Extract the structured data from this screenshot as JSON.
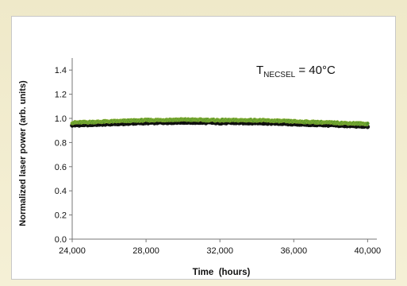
{
  "chart_data": {
    "type": "scatter",
    "xlabel": "Time  (hours)",
    "ylabel": "Normalized laser power (arb. units)",
    "annotation": {
      "main": "T",
      "subscript": "NECSEL",
      "rest": " = 40°C"
    },
    "xlim": [
      24000,
      40500
    ],
    "ylim": [
      0.0,
      1.5
    ],
    "xticks": [
      24000,
      28000,
      32000,
      36000,
      40000
    ],
    "xtick_labels": [
      "24,000",
      "28,000",
      "32,000",
      "36,000",
      "40,000"
    ],
    "yticks": [
      0.0,
      0.2,
      0.4,
      0.6,
      0.8,
      1.0,
      1.2,
      1.4
    ],
    "ytick_labels": [
      "0.0",
      "0.2",
      "0.4",
      "0.6",
      "0.8",
      "1.0",
      "1.2",
      "1.4"
    ],
    "grid": false,
    "series": [
      {
        "color": "#1a1a1a",
        "x": [
          24000,
          26000,
          28000,
          30000,
          32000,
          34000,
          36000,
          38000,
          40000
        ],
        "y": [
          0.945,
          0.955,
          0.965,
          0.97,
          0.965,
          0.965,
          0.955,
          0.945,
          0.935
        ]
      },
      {
        "color": "#4f8f2a",
        "x": [
          24000,
          26000,
          28000,
          30000,
          32000,
          34000,
          36000,
          38000,
          40000
        ],
        "y": [
          0.965,
          0.975,
          0.985,
          0.99,
          0.985,
          0.985,
          0.975,
          0.965,
          0.955
        ]
      }
    ]
  }
}
